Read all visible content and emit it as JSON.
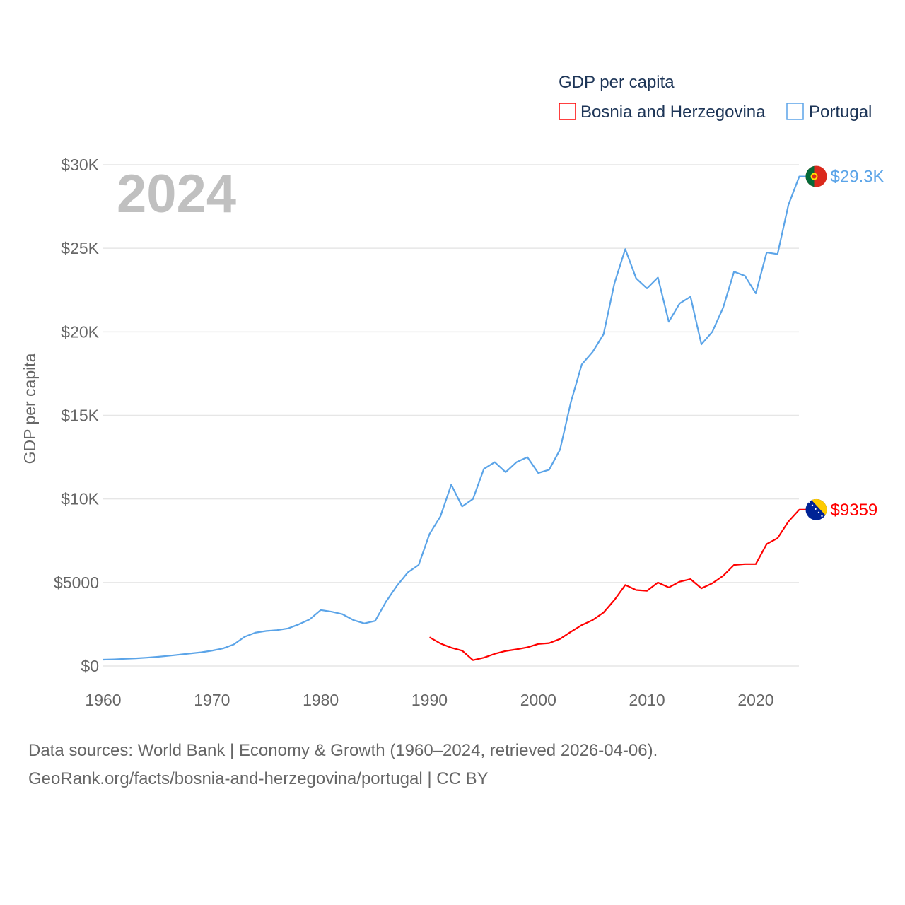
{
  "chart_data": {
    "type": "line",
    "title": "GDP per capita",
    "ylabel": "GDP per capita",
    "xlabel": "",
    "year_label": "2024",
    "xlim": [
      1960,
      2024
    ],
    "ylim": [
      0,
      30000
    ],
    "x_ticks": [
      1960,
      1970,
      1980,
      1990,
      2000,
      2010,
      2020
    ],
    "y_ticks": [
      {
        "value": 0,
        "label": "$0"
      },
      {
        "value": 5000,
        "label": "$5000"
      },
      {
        "value": 10000,
        "label": "$10K"
      },
      {
        "value": 15000,
        "label": "$15K"
      },
      {
        "value": 20000,
        "label": "$20K"
      },
      {
        "value": 25000,
        "label": "$25K"
      },
      {
        "value": 30000,
        "label": "$30K"
      }
    ],
    "grid": true,
    "legend_position": "top-right",
    "series": [
      {
        "name": "Bosnia and Herzegovina",
        "color": "#ff0000",
        "end_label": "$9359",
        "flag": "bosnia-flag",
        "start_year": 1990,
        "values": [
          1720,
          1350,
          1100,
          920,
          350,
          500,
          730,
          900,
          1000,
          1120,
          1320,
          1370,
          1620,
          2050,
          2450,
          2750,
          3200,
          3950,
          4850,
          4550,
          4500,
          5000,
          4700,
          5050,
          5200,
          4650,
          4950,
          5400,
          6050,
          6100,
          6100,
          7300,
          7650,
          8650,
          9359
        ]
      },
      {
        "name": "Portugal",
        "color": "#5ba4e8",
        "end_label": "$29.3K",
        "flag": "portugal-flag",
        "start_year": 1960,
        "values": [
          380,
          400,
          430,
          460,
          500,
          550,
          610,
          680,
          750,
          820,
          920,
          1050,
          1290,
          1750,
          2000,
          2100,
          2150,
          2250,
          2500,
          2800,
          3350,
          3250,
          3100,
          2750,
          2550,
          2700,
          3850,
          4800,
          5600,
          6050,
          7900,
          8950,
          10850,
          9550,
          10000,
          11800,
          12200,
          11600,
          12200,
          12500,
          11550,
          11750,
          12950,
          15800,
          18050,
          18800,
          19850,
          22900,
          24950,
          23200,
          22600,
          23250,
          20600,
          21700,
          22100,
          19250,
          20000,
          21450,
          23600,
          23350,
          22300,
          24750,
          24650,
          27600,
          29300
        ]
      }
    ]
  },
  "footer": {
    "line1": "Data sources: World Bank | Economy & Growth (1960–2024, retrieved 2026-04-06).",
    "line2": "GeoRank.org/facts/bosnia-and-herzegovina/portugal | CC BY"
  }
}
